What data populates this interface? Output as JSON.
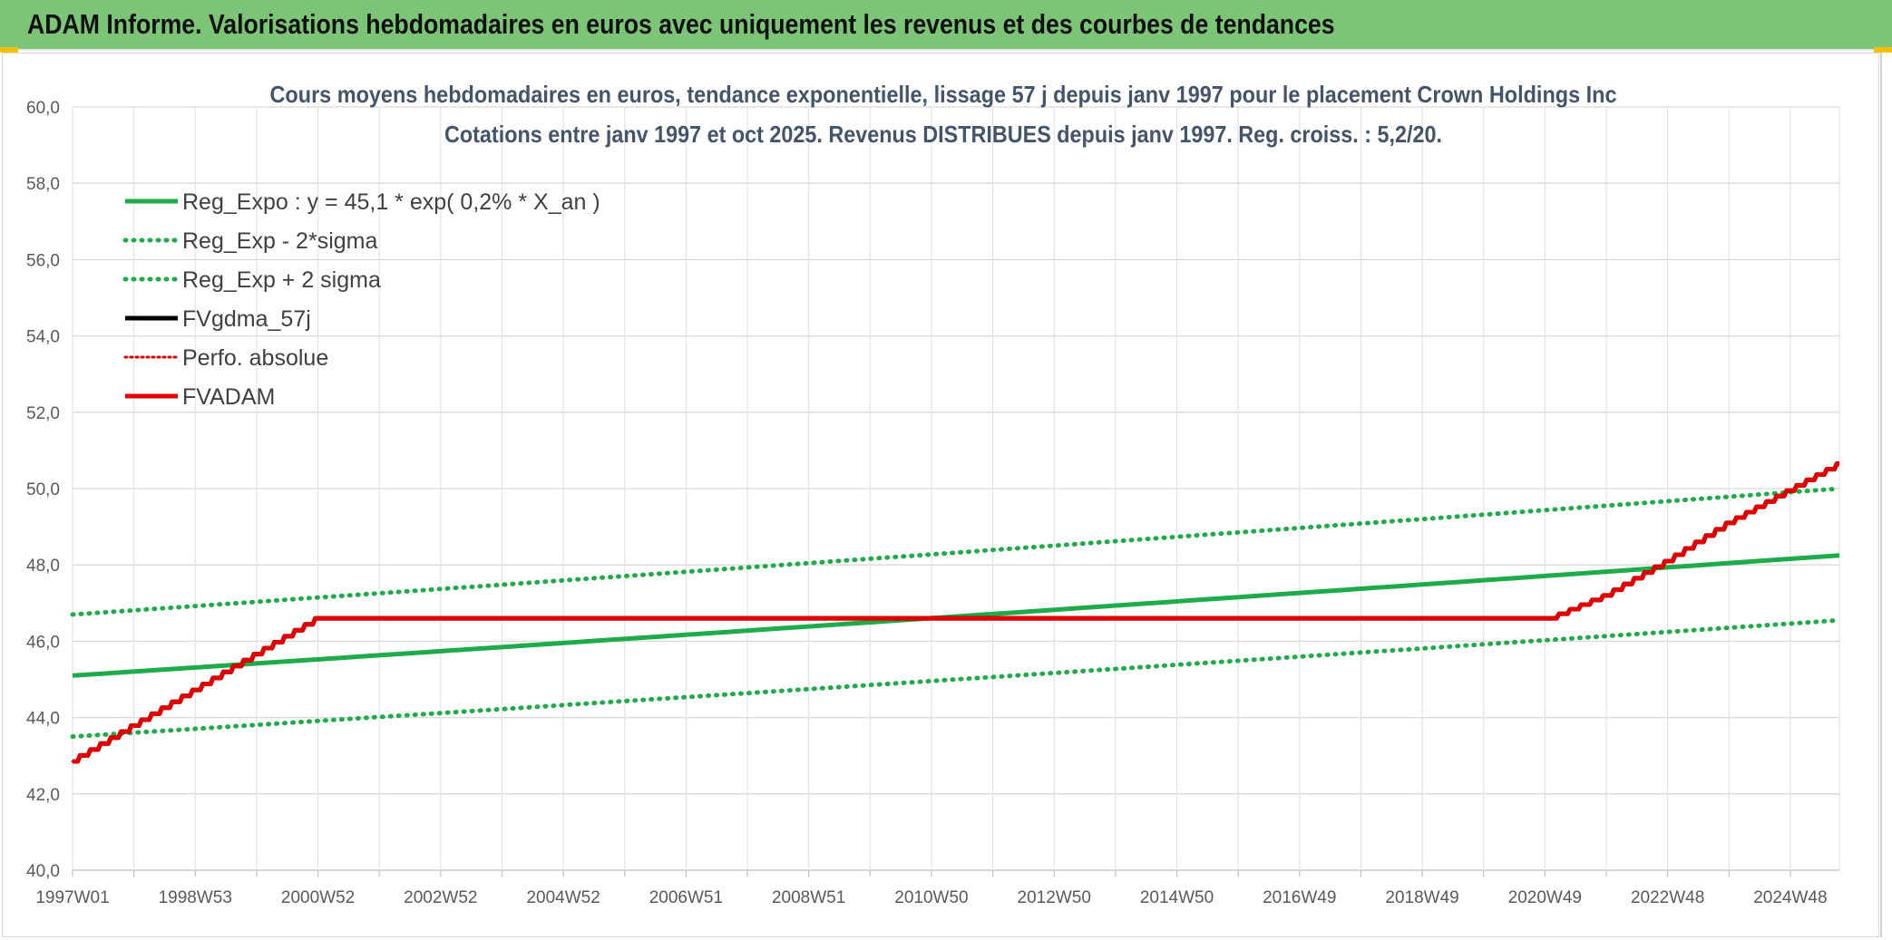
{
  "banner": {
    "title": "ADAM Informe. Valorisations hebdomadaires en euros avec uniquement les revenus et des courbes de tendances"
  },
  "chart_data": {
    "type": "line",
    "title": "Cours moyens hebdomadaires en euros, tendance exponentielle, lissage 57 j depuis janv 1997 pour le placement Crown Holdings Inc",
    "subtitle": "Cotations entre janv 1997 et oct 2025. Revenus DISTRIBUES depuis janv 1997. Reg. croiss. : 5,2/20.",
    "xlabel": "",
    "ylabel": "",
    "ylim": [
      40,
      60
    ],
    "yticks": [
      "40,0",
      "42,0",
      "44,0",
      "46,0",
      "48,0",
      "50,0",
      "52,0",
      "54,0",
      "56,0",
      "58,0",
      "60,0"
    ],
    "xlim": [
      1997.0,
      2025.8
    ],
    "xticks": [
      {
        "label": "1997W01",
        "x": 1997.0
      },
      {
        "label": "1998W53",
        "x": 1999.0
      },
      {
        "label": "2000W52",
        "x": 2001.0
      },
      {
        "label": "2002W52",
        "x": 2003.0
      },
      {
        "label": "2004W52",
        "x": 2005.0
      },
      {
        "label": "2006W51",
        "x": 2007.0
      },
      {
        "label": "2008W51",
        "x": 2009.0
      },
      {
        "label": "2010W50",
        "x": 2011.0
      },
      {
        "label": "2012W50",
        "x": 2013.0
      },
      {
        "label": "2014W50",
        "x": 2015.0
      },
      {
        "label": "2016W49",
        "x": 2017.0
      },
      {
        "label": "2018W49",
        "x": 2019.0
      },
      {
        "label": "2020W49",
        "x": 2021.0
      },
      {
        "label": "2022W48",
        "x": 2023.0
      },
      {
        "label": "2024W48",
        "x": 2025.0
      }
    ],
    "grid": true,
    "legend_position": "top-left",
    "series": [
      {
        "name": "Reg_Expo : y = 45,1 * exp( 0,2% *  X_an )",
        "color": "#1fab4a",
        "style": "solid",
        "x": [
          1997.0,
          2025.8
        ],
        "y": [
          45.1,
          48.25
        ]
      },
      {
        "name": "Reg_Exp - 2*sigma",
        "color": "#1fab4a",
        "style": "dotted",
        "x": [
          1997.0,
          2025.8
        ],
        "y": [
          43.5,
          46.55
        ]
      },
      {
        "name": "Reg_Exp + 2 sigma",
        "color": "#1fab4a",
        "style": "dotted",
        "x": [
          1997.0,
          2025.8
        ],
        "y": [
          46.7,
          50.0
        ]
      },
      {
        "name": "FVgdma_57j",
        "color": "#000000",
        "style": "solid",
        "x": [
          1997.0,
          2001.0,
          2021.1,
          2022.0,
          2023.0,
          2024.0,
          2025.8
        ],
        "y": [
          42.85,
          46.6,
          46.6,
          47.2,
          48.1,
          49.1,
          50.65
        ]
      },
      {
        "name": "Perfo. absolue",
        "color": "#e00000",
        "style": "dotted",
        "x": [
          1997.0,
          2001.0,
          2021.1,
          2022.0,
          2023.0,
          2024.0,
          2025.8
        ],
        "y": [
          42.85,
          46.6,
          46.6,
          47.2,
          48.1,
          49.1,
          50.65
        ]
      },
      {
        "name": "FVADAM",
        "color": "#e00000",
        "style": "solid",
        "x": [
          1997.0,
          2001.0,
          2021.1,
          2022.0,
          2023.0,
          2024.0,
          2025.8
        ],
        "y": [
          42.85,
          46.6,
          46.6,
          47.2,
          48.1,
          49.1,
          50.65
        ]
      }
    ]
  }
}
